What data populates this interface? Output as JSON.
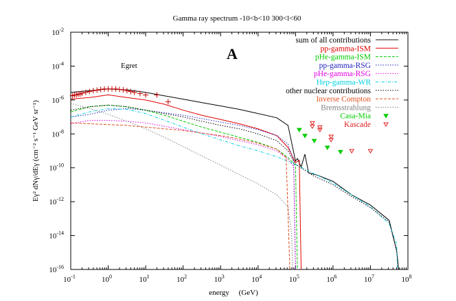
{
  "chart_data": {
    "type": "line",
    "title": "Gamma ray spectrum  -10<b<10 300<l<60",
    "panel_label": "A",
    "xlabel": "energy     (GeV)",
    "ylabel": "Eγ² dNγ/dEγ    (cm⁻² s⁻¹ GeV sr⁻¹)",
    "xscale": "log",
    "yscale": "log",
    "xlim": [
      0.1,
      100000000
    ],
    "ylim": [
      1e-16,
      0.01
    ],
    "x_ticks": [
      {
        "base": "10",
        "exp": "-1",
        "value": -1
      },
      {
        "base": "10",
        "exp": "0",
        "value": 0
      },
      {
        "base": "10",
        "exp": "1",
        "value": 1
      },
      {
        "base": "10",
        "exp": "2",
        "value": 2
      },
      {
        "base": "10",
        "exp": "3",
        "value": 3
      },
      {
        "base": "10",
        "exp": "4",
        "value": 4
      },
      {
        "base": "10",
        "exp": "5",
        "value": 5
      },
      {
        "base": "10",
        "exp": "6",
        "value": 6
      },
      {
        "base": "10",
        "exp": "7",
        "value": 7
      },
      {
        "base": "10",
        "exp": "8",
        "value": 8
      }
    ],
    "y_ticks": [
      {
        "base": "10",
        "exp": "-2",
        "value": -2
      },
      {
        "base": "10",
        "exp": "-4",
        "value": -4
      },
      {
        "base": "10",
        "exp": "-6",
        "value": -6
      },
      {
        "base": "10",
        "exp": "-8",
        "value": -8
      },
      {
        "base": "10",
        "exp": "-10",
        "value": -10
      },
      {
        "base": "10",
        "exp": "-12",
        "value": -12
      },
      {
        "base": "10",
        "exp": "-14",
        "value": -14
      },
      {
        "base": "10",
        "exp": "-16",
        "value": -16
      }
    ],
    "grid": false,
    "legend_position": "top-right",
    "annotations": [
      {
        "text": "Egret",
        "x_log": 0.25,
        "y_log": -4.5
      }
    ],
    "series": [
      {
        "name": "sum of all contributions",
        "color": "#000000",
        "style": "solid",
        "points_log": [
          [
            -1,
            -5.55
          ],
          [
            -0.5,
            -5.45
          ],
          [
            0,
            -5.35
          ],
          [
            0.5,
            -5.4
          ],
          [
            1,
            -5.55
          ],
          [
            1.5,
            -5.75
          ],
          [
            2,
            -5.95
          ],
          [
            2.5,
            -6.15
          ],
          [
            3,
            -6.35
          ],
          [
            3.5,
            -6.55
          ],
          [
            4,
            -6.8
          ],
          [
            4.5,
            -7.05
          ],
          [
            4.8,
            -7.5
          ],
          [
            5.0,
            -9.6
          ],
          [
            5.05,
            -9.45
          ],
          [
            5.15,
            -9.95
          ],
          [
            5.25,
            -9.2
          ],
          [
            5.35,
            -10.3
          ],
          [
            5.6,
            -10.45
          ],
          [
            6,
            -10.8
          ],
          [
            6.5,
            -11.6
          ],
          [
            7,
            -12.2
          ],
          [
            7.5,
            -13.1
          ],
          [
            7.7,
            -14.9
          ],
          [
            7.75,
            -16
          ]
        ]
      },
      {
        "name": "pp-gamma-ISM",
        "color": "#e00000",
        "style": "solid",
        "points_log": [
          [
            -1,
            -5.95
          ],
          [
            -0.5,
            -5.85
          ],
          [
            0,
            -5.7
          ],
          [
            0.5,
            -5.85
          ],
          [
            1,
            -6.0
          ],
          [
            1.5,
            -6.25
          ],
          [
            2,
            -6.6
          ],
          [
            2.5,
            -6.9
          ],
          [
            3,
            -7.15
          ],
          [
            3.5,
            -7.4
          ],
          [
            4,
            -7.7
          ],
          [
            4.5,
            -8.1
          ],
          [
            4.8,
            -8.8
          ],
          [
            5.0,
            -9.7
          ],
          [
            5.1,
            -9.55
          ],
          [
            5.15,
            -16
          ]
        ]
      },
      {
        "name": "pHe-gamma-ISM",
        "color": "#00cc00",
        "style": "dashed",
        "points_log": [
          [
            -1,
            -6.7
          ],
          [
            -0.5,
            -6.4
          ],
          [
            0,
            -6.3
          ],
          [
            0.5,
            -6.4
          ],
          [
            1,
            -6.6
          ],
          [
            1.5,
            -6.9
          ],
          [
            2,
            -7.25
          ],
          [
            2.5,
            -7.6
          ],
          [
            3,
            -7.9
          ],
          [
            3.5,
            -8.2
          ],
          [
            4,
            -8.5
          ],
          [
            4.5,
            -8.9
          ],
          [
            4.8,
            -9.4
          ],
          [
            5.0,
            -9.85
          ],
          [
            5.05,
            -16
          ]
        ]
      },
      {
        "name": "pp-gamma-RSG",
        "color": "#2020c0",
        "style": "dotted",
        "points_log": [
          [
            -1,
            -7.0
          ],
          [
            -0.5,
            -6.85
          ],
          [
            0,
            -6.6
          ],
          [
            0.5,
            -6.5
          ],
          [
            1,
            -6.6
          ],
          [
            1.5,
            -6.75
          ],
          [
            2,
            -6.9
          ],
          [
            2.5,
            -7.1
          ],
          [
            3,
            -7.3
          ],
          [
            3.5,
            -7.5
          ],
          [
            4,
            -7.75
          ],
          [
            4.5,
            -8.1
          ],
          [
            4.8,
            -8.6
          ],
          [
            4.95,
            -9.6
          ],
          [
            5.0,
            -16
          ]
        ]
      },
      {
        "name": "pHe-gamma-RSG",
        "color": "#e000e0",
        "style": "dotted",
        "points_log": [
          [
            -1,
            -7.4
          ],
          [
            -0.5,
            -7.2
          ],
          [
            0,
            -7.2
          ],
          [
            0.5,
            -7.25
          ],
          [
            1,
            -7.35
          ],
          [
            1.5,
            -7.55
          ],
          [
            2,
            -7.75
          ],
          [
            2.5,
            -7.95
          ],
          [
            3,
            -8.15
          ],
          [
            3.5,
            -8.4
          ],
          [
            4,
            -8.65
          ],
          [
            4.5,
            -9.0
          ],
          [
            4.8,
            -9.5
          ],
          [
            4.95,
            -9.9
          ],
          [
            5.0,
            -16
          ]
        ]
      },
      {
        "name": "Hep-gamma-WR",
        "color": "#00d0e0",
        "style": "dash-dot",
        "points_log": [
          [
            -1,
            -7.0
          ],
          [
            -0.5,
            -6.7
          ],
          [
            0,
            -6.5
          ],
          [
            0.5,
            -6.55
          ],
          [
            1,
            -6.8
          ],
          [
            1.5,
            -7.2
          ],
          [
            2,
            -7.6
          ],
          [
            2.5,
            -8.0
          ],
          [
            3,
            -8.35
          ],
          [
            3.5,
            -8.7
          ],
          [
            4,
            -9.0
          ],
          [
            4.5,
            -9.35
          ],
          [
            5,
            -9.8
          ],
          [
            5.5,
            -10.35
          ],
          [
            6,
            -10.9
          ],
          [
            6.5,
            -11.6
          ],
          [
            7,
            -12.3
          ],
          [
            7.5,
            -13.3
          ],
          [
            7.7,
            -14.5
          ],
          [
            7.72,
            -16
          ]
        ]
      },
      {
        "name": "other nuclear contributions",
        "color": "#000000",
        "style": "dotted",
        "points_log": [
          [
            -1,
            -6.6
          ],
          [
            -0.5,
            -6.4
          ],
          [
            0,
            -6.3
          ],
          [
            0.5,
            -6.4
          ],
          [
            1,
            -6.6
          ],
          [
            1.5,
            -6.8
          ],
          [
            2,
            -7.0
          ],
          [
            2.5,
            -7.25
          ],
          [
            3,
            -7.5
          ],
          [
            3.5,
            -7.7
          ],
          [
            4,
            -8.0
          ],
          [
            4.5,
            -8.4
          ],
          [
            4.8,
            -9.0
          ],
          [
            5,
            -9.8
          ],
          [
            5.5,
            -10.5
          ],
          [
            6,
            -11.0
          ],
          [
            6.5,
            -11.7
          ],
          [
            7,
            -12.35
          ],
          [
            7.5,
            -13.2
          ],
          [
            7.7,
            -14.9
          ],
          [
            7.75,
            -16
          ]
        ]
      },
      {
        "name": "Inverse Compton",
        "color": "#e05020",
        "style": "dashed",
        "points_log": [
          [
            -1,
            -7.35
          ],
          [
            -0.5,
            -7.4
          ],
          [
            0,
            -7.45
          ],
          [
            0.5,
            -7.5
          ],
          [
            1,
            -7.6
          ],
          [
            1.5,
            -7.7
          ],
          [
            2,
            -7.8
          ],
          [
            2.5,
            -7.95
          ],
          [
            3,
            -8.1
          ],
          [
            3.5,
            -8.3
          ],
          [
            4,
            -8.55
          ],
          [
            4.5,
            -8.9
          ],
          [
            4.75,
            -9.4
          ],
          [
            4.85,
            -16
          ]
        ]
      },
      {
        "name": "Bremsstrahlung",
        "color": "#808080",
        "style": "dotted",
        "points_log": [
          [
            -1,
            -6.2
          ],
          [
            -0.5,
            -6.5
          ],
          [
            0,
            -6.85
          ],
          [
            0.5,
            -7.25
          ],
          [
            1,
            -7.7
          ],
          [
            1.5,
            -8.2
          ],
          [
            2,
            -8.75
          ],
          [
            2.5,
            -9.3
          ],
          [
            3,
            -9.85
          ],
          [
            3.5,
            -10.4
          ],
          [
            4,
            -10.95
          ],
          [
            4.5,
            -11.6
          ],
          [
            4.8,
            -12.3
          ],
          [
            4.9,
            -14.0
          ],
          [
            4.92,
            -16
          ]
        ]
      }
    ],
    "markers": [
      {
        "name": "Egret",
        "color": "#c00000",
        "shape": "plus",
        "points_log": [
          [
            -0.95,
            -5.75
          ],
          [
            -0.9,
            -5.7
          ],
          [
            -0.85,
            -5.7
          ],
          [
            -0.8,
            -5.65
          ],
          [
            -0.75,
            -5.65
          ],
          [
            -0.7,
            -5.6
          ],
          [
            -0.6,
            -5.55
          ],
          [
            -0.5,
            -5.5
          ],
          [
            -0.4,
            -5.45
          ],
          [
            -0.3,
            -5.42
          ],
          [
            -0.2,
            -5.38
          ],
          [
            -0.1,
            -5.35
          ],
          [
            0,
            -5.35
          ],
          [
            0.1,
            -5.35
          ],
          [
            0.2,
            -5.35
          ],
          [
            0.3,
            -5.38
          ],
          [
            0.4,
            -5.4
          ],
          [
            0.5,
            -5.45
          ],
          [
            0.6,
            -5.5
          ],
          [
            0.7,
            -5.55
          ],
          [
            0.85,
            -5.62
          ],
          [
            1.0,
            -5.7
          ],
          [
            1.3,
            -5.7
          ],
          [
            1.6,
            -6.1
          ]
        ]
      },
      {
        "name": "Casa-Mia",
        "color": "#00cc00",
        "shape": "filled-triangle-down",
        "points_log": [
          [
            5.1,
            -7.75
          ],
          [
            5.25,
            -8.1
          ],
          [
            5.5,
            -8.4
          ],
          [
            5.85,
            -8.8
          ],
          [
            6.2,
            -9.05
          ]
        ]
      },
      {
        "name": "Kascade",
        "color": "#e02020",
        "shape": "open-triangle-down",
        "points_log": [
          [
            5.45,
            -7.35
          ],
          [
            5.45,
            -7.55
          ],
          [
            5.65,
            -7.6
          ],
          [
            5.65,
            -7.75
          ],
          [
            5.95,
            -8.15
          ],
          [
            5.95,
            -8.35
          ],
          [
            6.5,
            -9.0
          ],
          [
            7.0,
            -9.0
          ]
        ]
      }
    ]
  }
}
